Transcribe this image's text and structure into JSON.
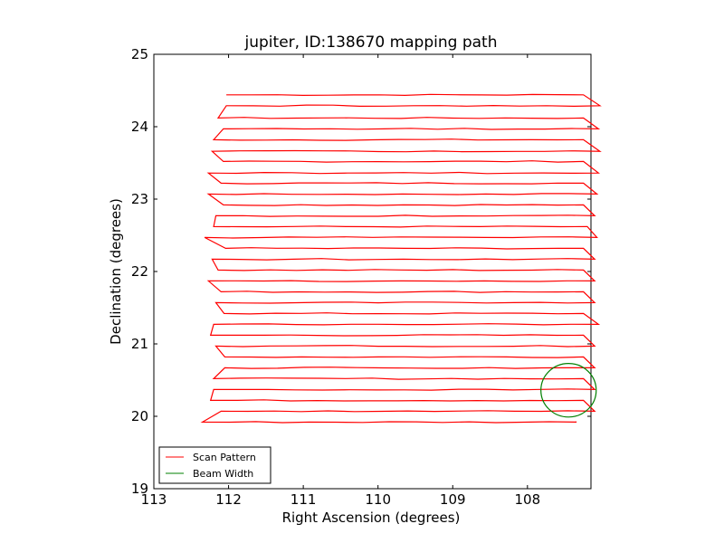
{
  "chart_data": {
    "type": "line",
    "title": "jupiter, ID:138670 mapping path",
    "xlabel": "Right Ascension (degrees)",
    "ylabel": "Declination (degrees)",
    "xlim": [
      113,
      107.15
    ],
    "ylim": [
      19,
      25
    ],
    "x_inverted": true,
    "xticks": [
      113,
      112,
      111,
      110,
      109,
      108
    ],
    "yticks": [
      19,
      20,
      21,
      22,
      23,
      24,
      25
    ],
    "grid": false,
    "legend_position": "lower-left",
    "series": [
      {
        "name": "Scan Pattern",
        "color": "#ff0000",
        "style": "raster-scan",
        "rows_dec": [
          24.44,
          24.29,
          24.12,
          23.97,
          23.82,
          23.66,
          23.52,
          23.36,
          23.22,
          23.07,
          22.92,
          22.77,
          22.62,
          22.47,
          22.32,
          22.17,
          22.02,
          21.87,
          21.72,
          21.57,
          21.42,
          21.27,
          21.12,
          20.97,
          20.82,
          20.67,
          20.52,
          20.37,
          20.22,
          20.07,
          19.92
        ],
        "ra_left_ends": [
          112.03,
          112.03,
          112.14,
          112.07,
          112.2,
          112.22,
          112.07,
          112.27,
          112.1,
          112.27,
          112.07,
          112.17,
          112.2,
          112.32,
          112.04,
          112.22,
          112.14,
          112.27,
          112.1,
          112.17,
          112.06,
          112.2,
          112.24,
          112.17,
          112.05,
          112.05,
          112.2,
          112.2,
          112.24,
          112.1,
          112.35
        ],
        "ra_right_ends": [
          107.25,
          107.03,
          107.25,
          107.05,
          107.25,
          107.03,
          107.25,
          107.05,
          107.25,
          107.07,
          107.25,
          107.1,
          107.2,
          107.07,
          107.25,
          107.1,
          107.25,
          107.1,
          107.25,
          107.1,
          107.25,
          107.05,
          107.25,
          107.1,
          107.25,
          107.1,
          107.25,
          107.1,
          107.25,
          107.1,
          107.35
        ],
        "end_point": [
          107.35,
          19.93
        ]
      },
      {
        "name": "Beam Width",
        "color": "#008000",
        "style": "circle",
        "center": [
          107.45,
          20.36
        ],
        "radius_deg": 0.37
      }
    ]
  },
  "legend": {
    "scan_label": "Scan Pattern",
    "beam_label": "Beam Width"
  }
}
